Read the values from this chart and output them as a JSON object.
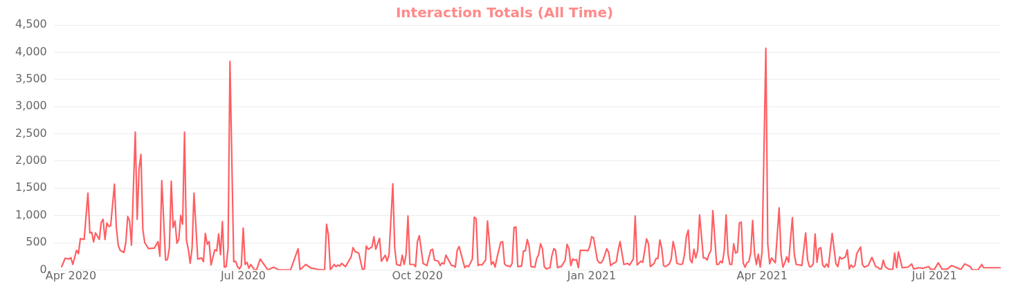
{
  "chart_data": {
    "type": "line",
    "title": "Interaction Totals (All Time)",
    "x": [
      "2020-03-27",
      "2020-03-29",
      "2020-03-31",
      "2020-04-01",
      "2020-04-02",
      "2020-04-04",
      "2020-04-05",
      "2020-04-06",
      "2020-04-08",
      "2020-04-10",
      "2020-04-11",
      "2020-04-12",
      "2020-04-13",
      "2020-04-14",
      "2020-04-16",
      "2020-04-17",
      "2020-04-18",
      "2020-04-19",
      "2020-04-20",
      "2020-04-21",
      "2020-04-22",
      "2020-04-24",
      "2020-04-25",
      "2020-04-26",
      "2020-04-27",
      "2020-04-29",
      "2020-04-30",
      "2020-05-01",
      "2020-05-02",
      "2020-05-03",
      "2020-05-05",
      "2020-05-06",
      "2020-05-07",
      "2020-05-08",
      "2020-05-09",
      "2020-05-10",
      "2020-05-12",
      "2020-05-15",
      "2020-05-17",
      "2020-05-18",
      "2020-05-19",
      "2020-05-21",
      "2020-05-22",
      "2020-05-23",
      "2020-05-24",
      "2020-05-25",
      "2020-05-26",
      "2020-05-27",
      "2020-05-28",
      "2020-05-29",
      "2020-05-30",
      "2020-05-31",
      "2020-06-01",
      "2020-06-02",
      "2020-06-03",
      "2020-06-04",
      "2020-06-05",
      "2020-06-07",
      "2020-06-09",
      "2020-06-10",
      "2020-06-11",
      "2020-06-12",
      "2020-06-13",
      "2020-06-14",
      "2020-06-16",
      "2020-06-17",
      "2020-06-18",
      "2020-06-19",
      "2020-06-20",
      "2020-06-21",
      "2020-06-22",
      "2020-06-23",
      "2020-06-24",
      "2020-06-26",
      "2020-06-27",
      "2020-06-28",
      "2020-06-29",
      "2020-06-30",
      "2020-07-01",
      "2020-07-02",
      "2020-07-03",
      "2020-07-04",
      "2020-07-05",
      "2020-07-07",
      "2020-07-08",
      "2020-07-10",
      "2020-07-14",
      "2020-07-17",
      "2020-07-20",
      "2020-07-26",
      "2020-07-30",
      "2020-07-31",
      "2020-08-03",
      "2020-08-06",
      "2020-08-07",
      "2020-08-09",
      "2020-08-13",
      "2020-08-14",
      "2020-08-15",
      "2020-08-16",
      "2020-08-18",
      "2020-08-19",
      "2020-08-20",
      "2020-08-21",
      "2020-08-22",
      "2020-08-24",
      "2020-08-27",
      "2020-08-28",
      "2020-08-29",
      "2020-08-31",
      "2020-09-02",
      "2020-09-03",
      "2020-09-04",
      "2020-09-05",
      "2020-09-07",
      "2020-09-08",
      "2020-09-09",
      "2020-09-11",
      "2020-09-12",
      "2020-09-14",
      "2020-09-15",
      "2020-09-16",
      "2020-09-18",
      "2020-09-19",
      "2020-09-20",
      "2020-09-22",
      "2020-09-23",
      "2020-09-24",
      "2020-09-25",
      "2020-09-26",
      "2020-09-27",
      "2020-09-29",
      "2020-09-30",
      "2020-10-01",
      "2020-10-02",
      "2020-10-04",
      "2020-10-06",
      "2020-10-08",
      "2020-10-09",
      "2020-10-10",
      "2020-10-12",
      "2020-10-13",
      "2020-10-14",
      "2020-10-15",
      "2020-10-16",
      "2020-10-17",
      "2020-10-19",
      "2020-10-20",
      "2020-10-21",
      "2020-10-22",
      "2020-10-23",
      "2020-10-26",
      "2020-10-27",
      "2020-10-28",
      "2020-10-30",
      "2020-10-31",
      "2020-11-01",
      "2020-11-02",
      "2020-11-03",
      "2020-11-04",
      "2020-11-06",
      "2020-11-07",
      "2020-11-09",
      "2020-11-10",
      "2020-11-11",
      "2020-11-12",
      "2020-11-14",
      "2020-11-15",
      "2020-11-16",
      "2020-11-17",
      "2020-11-19",
      "2020-11-20",
      "2020-11-21",
      "2020-11-22",
      "2020-11-23",
      "2020-11-25",
      "2020-11-26",
      "2020-11-27",
      "2020-11-28",
      "2020-11-29",
      "2020-11-30",
      "2020-12-02",
      "2020-12-03",
      "2020-12-04",
      "2020-12-05",
      "2020-12-06",
      "2020-12-07",
      "2020-12-08",
      "2020-12-10",
      "2020-12-11",
      "2020-12-12",
      "2020-12-13",
      "2020-12-14",
      "2020-12-15",
      "2020-12-16",
      "2020-12-18",
      "2020-12-19",
      "2020-12-20",
      "2020-12-21",
      "2020-12-22",
      "2020-12-23",
      "2020-12-24",
      "2020-12-25",
      "2020-12-26",
      "2020-12-29",
      "2020-12-30",
      "2020-12-31",
      "2021-01-01",
      "2021-01-02",
      "2021-01-04",
      "2021-01-05",
      "2021-01-06",
      "2021-01-07",
      "2021-01-09",
      "2021-01-10",
      "2021-01-11",
      "2021-01-12",
      "2021-01-14",
      "2021-01-15",
      "2021-01-16",
      "2021-01-18",
      "2021-01-20",
      "2021-01-21",
      "2021-01-23",
      "2021-01-24",
      "2021-01-25",
      "2021-01-27",
      "2021-01-28",
      "2021-01-30",
      "2021-01-31",
      "2021-02-01",
      "2021-02-03",
      "2021-02-04",
      "2021-02-05",
      "2021-02-06",
      "2021-02-07",
      "2021-02-08",
      "2021-02-09",
      "2021-02-11",
      "2021-02-12",
      "2021-02-13",
      "2021-02-14",
      "2021-02-15",
      "2021-02-17",
      "2021-02-18",
      "2021-02-19",
      "2021-02-20",
      "2021-02-21",
      "2021-02-22",
      "2021-02-23",
      "2021-02-24",
      "2021-02-25",
      "2021-02-26",
      "2021-02-27",
      "2021-03-01",
      "2021-03-02",
      "2021-03-03",
      "2021-03-04",
      "2021-03-05",
      "2021-03-06",
      "2021-03-08",
      "2021-03-09",
      "2021-03-10",
      "2021-03-11",
      "2021-03-12",
      "2021-03-13",
      "2021-03-14",
      "2021-03-15",
      "2021-03-16",
      "2021-03-17",
      "2021-03-18",
      "2021-03-19",
      "2021-03-20",
      "2021-03-21",
      "2021-03-22",
      "2021-03-23",
      "2021-03-24",
      "2021-03-25",
      "2021-03-26",
      "2021-03-27",
      "2021-03-28",
      "2021-03-29",
      "2021-03-30",
      "2021-03-31",
      "2021-04-01",
      "2021-04-03",
      "2021-04-04",
      "2021-04-05",
      "2021-04-06",
      "2021-04-08",
      "2021-04-10",
      "2021-04-11",
      "2021-04-12",
      "2021-04-13",
      "2021-04-14",
      "2021-04-15",
      "2021-04-17",
      "2021-04-18",
      "2021-04-19",
      "2021-04-21",
      "2021-04-22",
      "2021-04-24",
      "2021-04-25",
      "2021-04-26",
      "2021-04-27",
      "2021-04-28",
      "2021-04-29",
      "2021-04-30",
      "2021-05-01",
      "2021-05-02",
      "2021-05-03",
      "2021-05-04",
      "2021-05-05",
      "2021-05-06",
      "2021-05-08",
      "2021-05-10",
      "2021-05-11",
      "2021-05-12",
      "2021-05-13",
      "2021-05-15",
      "2021-05-16",
      "2021-05-17",
      "2021-05-18",
      "2021-05-19",
      "2021-05-20",
      "2021-05-21",
      "2021-05-23",
      "2021-05-24",
      "2021-05-25",
      "2021-05-27",
      "2021-05-29",
      "2021-05-31",
      "2021-06-01",
      "2021-06-02",
      "2021-06-03",
      "2021-06-04",
      "2021-06-05",
      "2021-06-07",
      "2021-06-09",
      "2021-06-10",
      "2021-06-11",
      "2021-06-12",
      "2021-06-14",
      "2021-06-17",
      "2021-06-19",
      "2021-06-20",
      "2021-06-23",
      "2021-06-25",
      "2021-06-28",
      "2021-06-29",
      "2021-07-01",
      "2021-07-03",
      "2021-07-05",
      "2021-07-06",
      "2021-07-08",
      "2021-07-10",
      "2021-07-15",
      "2021-07-17",
      "2021-07-20",
      "2021-07-21",
      "2021-07-24",
      "2021-07-26",
      "2021-07-27",
      "2021-08-05"
    ],
    "series": [
      {
        "color": "#ff5e62",
        "values": [
          50,
          215,
          200,
          225,
          100,
          360,
          300,
          575,
          560,
          1410,
          680,
          690,
          515,
          680,
          560,
          870,
          930,
          560,
          860,
          800,
          810,
          1575,
          775,
          455,
          360,
          320,
          500,
          980,
          900,
          455,
          2530,
          930,
          1850,
          2120,
          740,
          500,
          390,
          400,
          520,
          250,
          1640,
          180,
          190,
          400,
          1630,
          780,
          900,
          490,
          560,
          1000,
          840,
          2530,
          550,
          380,
          120,
          400,
          1410,
          200,
          220,
          150,
          670,
          470,
          520,
          90,
          370,
          350,
          660,
          280,
          890,
          50,
          60,
          400,
          3830,
          150,
          160,
          60,
          20,
          80,
          770,
          100,
          140,
          30,
          100,
          0,
          0,
          200,
          0,
          50,
          0,
          0,
          390,
          0,
          100,
          30,
          30,
          10,
          0,
          840,
          640,
          0,
          100,
          60,
          90,
          70,
          120,
          60,
          240,
          410,
          340,
          310,
          0,
          20,
          440,
          380,
          420,
          610,
          380,
          580,
          160,
          270,
          160,
          280,
          1580,
          410,
          100,
          80,
          270,
          100,
          280,
          990,
          100,
          100,
          60,
          520,
          630,
          120,
          80,
          360,
          380,
          180,
          160,
          80,
          130,
          110,
          270,
          210,
          80,
          80,
          50,
          360,
          430,
          40,
          80,
          60,
          200,
          970,
          940,
          80,
          100,
          90,
          180,
          900,
          100,
          150,
          50,
          220,
          510,
          520,
          110,
          80,
          60,
          120,
          780,
          790,
          60,
          70,
          350,
          350,
          560,
          430,
          60,
          50,
          210,
          280,
          480,
          390,
          60,
          20,
          40,
          260,
          390,
          360,
          40,
          60,
          60,
          180,
          470,
          390,
          80,
          200,
          180,
          190,
          40,
          360,
          360,
          350,
          430,
          610,
          590,
          180,
          130,
          130,
          180,
          390,
          320,
          80,
          110,
          150,
          360,
          520,
          100,
          120,
          90,
          200,
          990,
          90,
          160,
          140,
          570,
          480,
          60,
          120,
          210,
          210,
          550,
          400,
          80,
          60,
          110,
          200,
          520,
          380,
          120,
          100,
          110,
          280,
          610,
          730,
          190,
          130,
          380,
          220,
          360,
          1010,
          220,
          220,
          180,
          290,
          360,
          1090,
          100,
          100,
          160,
          130,
          350,
          1010,
          290,
          100,
          100,
          480,
          310,
          330,
          860,
          880,
          130,
          50,
          130,
          150,
          310,
          910,
          310,
          100,
          290,
          50,
          330,
          4070,
          480,
          110,
          220,
          130,
          1140,
          290,
          50,
          130,
          240,
          140,
          960,
          290,
          100,
          90,
          80,
          680,
          190,
          60,
          60,
          110,
          660,
          140,
          390,
          410,
          90,
          50,
          110,
          50,
          670,
          110,
          60,
          240,
          200,
          240,
          370,
          20,
          90,
          50,
          80,
          300,
          420,
          100,
          50,
          80,
          230,
          60,
          50,
          20,
          20,
          180,
          60,
          10,
          10,
          310,
          40,
          330,
          40,
          50,
          110,
          20,
          40,
          30,
          60,
          10,
          10,
          130,
          20,
          10,
          20,
          80,
          10,
          110,
          60,
          0,
          0,
          100,
          40,
          40
        ]
      }
    ],
    "xlim": [
      "2020-03-23",
      "2021-08-05"
    ],
    "xticks": [
      {
        "value": "2020-04",
        "label": "Apr 2020"
      },
      {
        "value": "2020-07",
        "label": "Jul 2020"
      },
      {
        "value": "2020-10",
        "label": "Oct 2020"
      },
      {
        "value": "2021-01",
        "label": "Jan 2021"
      },
      {
        "value": "2021-04",
        "label": "Apr 2021"
      },
      {
        "value": "2021-07",
        "label": "Jul 2021"
      }
    ],
    "ylim": [
      0,
      4500
    ],
    "yticks": [
      0,
      500,
      {
        "value": 1000,
        "label": "1,000"
      },
      {
        "value": 1500,
        "label": "1,500"
      },
      {
        "value": 2000,
        "label": "2,000"
      },
      {
        "value": 2500,
        "label": "2,500"
      },
      {
        "value": 3000,
        "label": "3,000"
      },
      {
        "value": 3500,
        "label": "3,500"
      },
      {
        "value": 4000,
        "label": "4,000"
      },
      {
        "value": 4500,
        "label": "4,500"
      }
    ],
    "grid": "y",
    "marker": "none",
    "line_style": "solid"
  }
}
